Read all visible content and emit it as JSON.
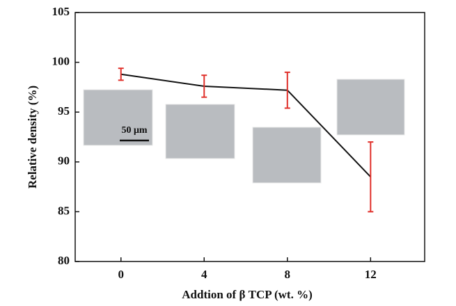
{
  "chart_data": {
    "type": "line",
    "xlabel": "Addtion of β TCP (wt. %)",
    "ylabel": "Relative density (%)",
    "x": [
      0,
      4,
      8,
      12
    ],
    "values": [
      98.8,
      97.6,
      97.2,
      88.5
    ],
    "errors": [
      0.6,
      1.1,
      1.8,
      3.5
    ],
    "color": "#111111",
    "error_color": "#e0302a",
    "xlim": [
      -2.2,
      14.6
    ],
    "xticks": [
      0,
      4,
      8,
      12
    ],
    "ylim": [
      80,
      105
    ],
    "yticks": [
      80,
      85,
      90,
      95,
      100,
      105
    ],
    "annotation": "50 μm"
  }
}
